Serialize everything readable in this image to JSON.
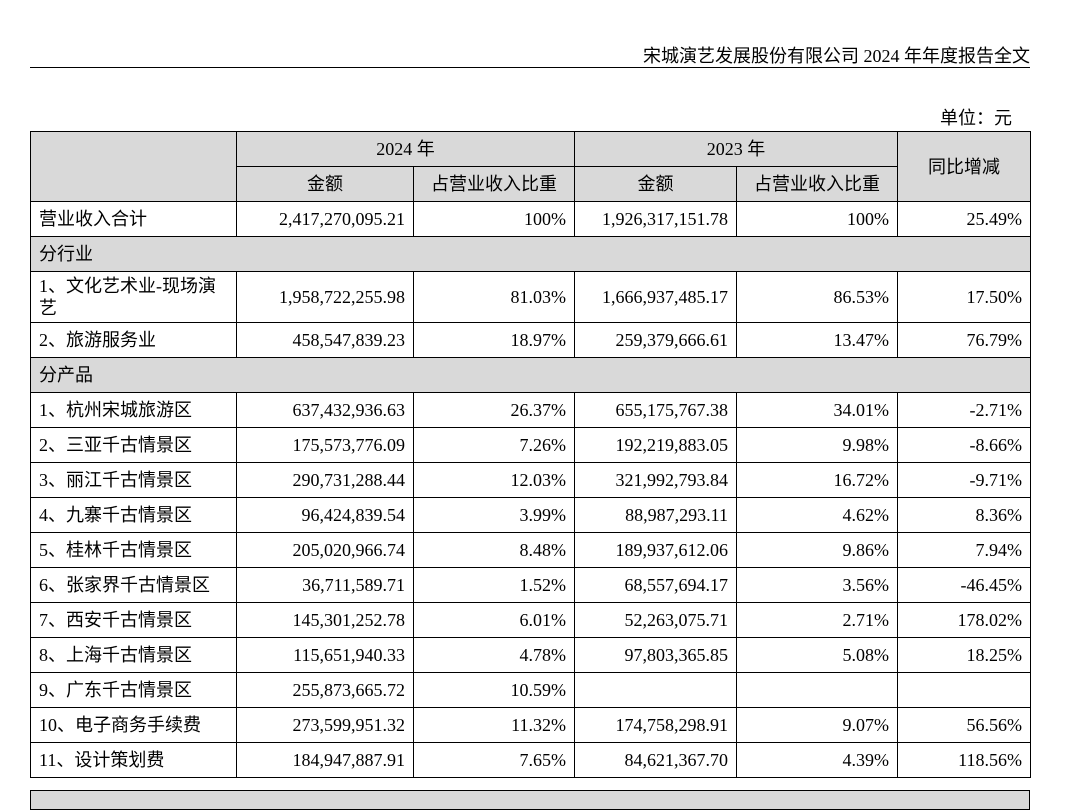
{
  "header": {
    "title": "宋城演艺发展股份有限公司 2024 年年度报告全文",
    "unit": "单位：元"
  },
  "table": {
    "head": {
      "year_a": "2024 年",
      "year_b": "2023 年",
      "yoy": "同比增减",
      "sub": [
        "金额",
        "占营业收入比重",
        "金额",
        "占营业收入比重"
      ]
    },
    "rows": [
      [
        "营业收入合计",
        "2,417,270,095.21",
        "100%",
        "1,926,317,151.78",
        "100%",
        "25.49%"
      ],
      [
        "分行业"
      ],
      [
        "1、文化艺术业-现场演艺",
        "1,958,722,255.98",
        "81.03%",
        "1,666,937,485.17",
        "86.53%",
        "17.50%"
      ],
      [
        "2、旅游服务业",
        "458,547,839.23",
        "18.97%",
        "259,379,666.61",
        "13.47%",
        "76.79%"
      ],
      [
        "分产品"
      ],
      [
        "1、杭州宋城旅游区",
        "637,432,936.63",
        "26.37%",
        "655,175,767.38",
        "34.01%",
        "-2.71%"
      ],
      [
        "2、三亚千古情景区",
        "175,573,776.09",
        "7.26%",
        "192,219,883.05",
        "9.98%",
        "-8.66%"
      ],
      [
        "3、丽江千古情景区",
        "290,731,288.44",
        "12.03%",
        "321,992,793.84",
        "16.72%",
        "-9.71%"
      ],
      [
        "4、九寨千古情景区",
        "96,424,839.54",
        "3.99%",
        "88,987,293.11",
        "4.62%",
        "8.36%"
      ],
      [
        "5、桂林千古情景区",
        "205,020,966.74",
        "8.48%",
        "189,937,612.06",
        "9.86%",
        "7.94%"
      ],
      [
        "6、张家界千古情景区",
        "36,711,589.71",
        "1.52%",
        "68,557,694.17",
        "3.56%",
        "-46.45%"
      ],
      [
        "7、西安千古情景区",
        "145,301,252.78",
        "6.01%",
        "52,263,075.71",
        "2.71%",
        "178.02%"
      ],
      [
        "8、上海千古情景区",
        "115,651,940.33",
        "4.78%",
        "97,803,365.85",
        "5.08%",
        "18.25%"
      ],
      [
        "9、广东千古情景区",
        "255,873,665.72",
        "10.59%",
        null,
        null,
        null
      ],
      [
        "10、电子商务手续费",
        "273,599,951.32",
        "11.32%",
        "174,758,298.91",
        "9.07%",
        "56.56%"
      ],
      [
        "11、设计策划费",
        "184,947,887.91",
        "7.65%",
        "84,621,367.70",
        "4.39%",
        "118.56%"
      ]
    ]
  }
}
